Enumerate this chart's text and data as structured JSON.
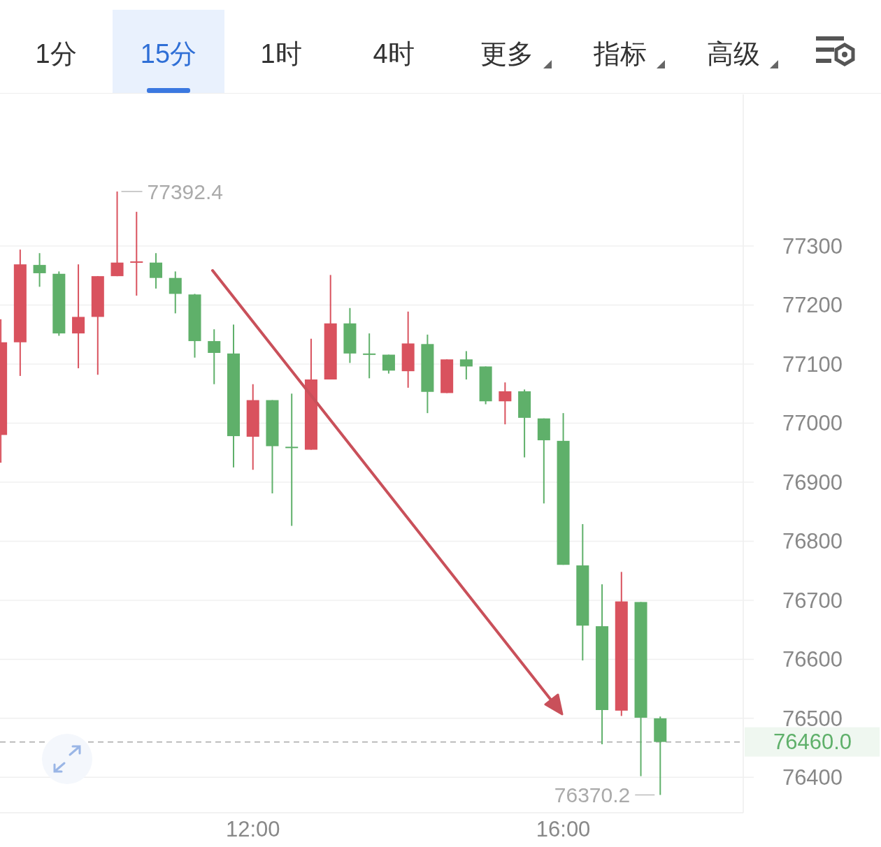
{
  "chart_data": {
    "type": "candlestick",
    "x": [
      8.75,
      9,
      9.25,
      9.5,
      9.75,
      10,
      10.25,
      10.5,
      10.75,
      11,
      11.25,
      11.5,
      11.75,
      12,
      12.25,
      12.5,
      12.75,
      13,
      13.25,
      13.5,
      13.75,
      14,
      14.25,
      14.5,
      14.75,
      15,
      15.25,
      15.5,
      15.75,
      16,
      16.25,
      16.5,
      16.75,
      17,
      17.25
    ],
    "ohlc": [
      [
        76980,
        77176,
        76933,
        77137
      ],
      [
        77137,
        77294,
        77080,
        77269
      ],
      [
        77268,
        77288,
        77231,
        77254
      ],
      [
        77253,
        77257,
        77148,
        77152
      ],
      [
        77152,
        77269,
        77093,
        77180
      ],
      [
        77180,
        77249,
        77082,
        77249
      ],
      [
        77249,
        77392.4,
        77249,
        77272
      ],
      [
        77272,
        77358,
        77216,
        77274
      ],
      [
        77272,
        77288,
        77228,
        77246
      ],
      [
        77246,
        77257,
        77186,
        77219
      ],
      [
        77218,
        77219,
        77111,
        77139
      ],
      [
        77139,
        77159,
        77066,
        77119
      ],
      [
        77118,
        77167,
        76925,
        76978
      ],
      [
        76977,
        77066,
        76921,
        77039
      ],
      [
        77039,
        77039,
        76881,
        76961
      ],
      [
        76960,
        77050,
        76826,
        76958
      ],
      [
        76955,
        77143,
        76955,
        77074
      ],
      [
        77074,
        77251,
        77074,
        77169
      ],
      [
        77169,
        77195,
        77102,
        77118
      ],
      [
        77118,
        77152,
        77076,
        77116
      ],
      [
        77116,
        77116,
        77084,
        77089
      ],
      [
        77088,
        77189,
        77060,
        77135
      ],
      [
        77134,
        77150,
        77017,
        77053
      ],
      [
        77051,
        77108,
        77051,
        77108
      ],
      [
        77108,
        77122,
        77074,
        77096
      ],
      [
        77096,
        77096,
        77032,
        77037
      ],
      [
        77037,
        77069,
        76998,
        77054
      ],
      [
        77054,
        77057,
        76942,
        77009
      ],
      [
        77008,
        77008,
        76864,
        76971
      ],
      [
        76970,
        77017,
        76760,
        76760
      ],
      [
        76759,
        76829,
        76598,
        76657
      ],
      [
        76656,
        76727,
        76456,
        76514
      ],
      [
        76513,
        76748,
        76504,
        76698
      ],
      [
        76697,
        76697,
        76402,
        76501
      ],
      [
        76500,
        76503,
        76370.2,
        76460.0
      ]
    ],
    "colors": [
      "#d9525e",
      "#d9525e",
      "#5fb06a",
      "#5fb06a",
      "#d9525e",
      "#d9525e",
      "#d9525e",
      "#d9525e",
      "#5fb06a",
      "#5fb06a",
      "#5fb06a",
      "#5fb06a",
      "#5fb06a",
      "#d9525e",
      "#5fb06a",
      "#5fb06a",
      "#d9525e",
      "#d9525e",
      "#5fb06a",
      "#5fb06a",
      "#5fb06a",
      "#d9525e",
      "#5fb06a",
      "#d9525e",
      "#5fb06a",
      "#5fb06a",
      "#d9525e",
      "#5fb06a",
      "#5fb06a",
      "#5fb06a",
      "#5fb06a",
      "#5fb06a",
      "#d9525e",
      "#5fb06a",
      "#5fb06a"
    ],
    "xlim": [
      8.74,
      18.32
    ],
    "xticks": [
      {
        "value": 12,
        "label": "12:00"
      },
      {
        "value": 16,
        "label": "16:00"
      }
    ],
    "ylim": [
      76340,
      77557
    ],
    "yticks": [
      76400,
      76500,
      76600,
      76700,
      76800,
      76900,
      77000,
      77100,
      77200,
      77300
    ],
    "grid": "y",
    "ref_lines": [
      {
        "axis": "y",
        "value": 76460.0,
        "label": "76460.0",
        "color": "#aaaaaa",
        "line_style": "dashed"
      }
    ],
    "annotations": [
      "1分",
      "15分",
      "1时",
      "4时",
      "更多",
      "指标",
      "高级",
      {
        "text": "77392.4",
        "x": 10.25,
        "y": 77392.4
      },
      {
        "text": "76370.2",
        "x": 17.25,
        "y": 76370.2
      }
    ]
  }
}
